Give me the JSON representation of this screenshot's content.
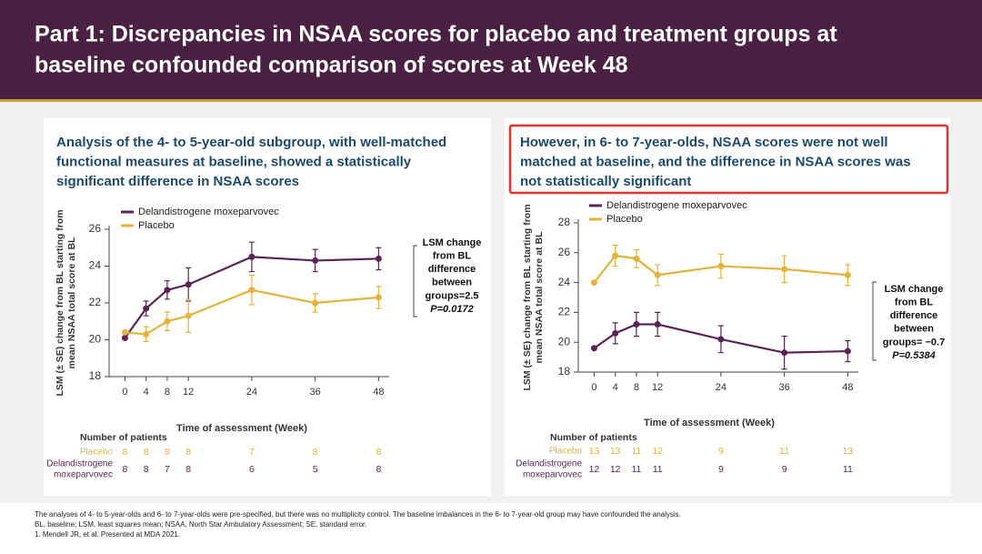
{
  "header": {
    "title": [
      "Part 1: Discrepancies in NSAA scores for placebo and treatment groups at",
      "baseline confounded comparison of scores at Week 48"
    ]
  },
  "chart_data": [
    {
      "type": "line",
      "heading": [
        "Analysis of the 4- to 5-year-old subgroup, with well-matched",
        "functional measures at baseline, showed a statistically",
        "significant difference in NSAA scores"
      ],
      "ylabel": [
        "LSM (± SE) change from BL starting from",
        "mean NSAA total score at BL"
      ],
      "xlabel": "Time of assessment (Week)",
      "x": [
        0,
        4,
        8,
        12,
        24,
        36,
        48
      ],
      "xlim": [
        -3,
        50
      ],
      "xticks": [
        0,
        4,
        8,
        12,
        24,
        36,
        48
      ],
      "ylim": [
        18,
        26
      ],
      "yticks": [
        18,
        20,
        22,
        24,
        26
      ],
      "series": [
        {
          "name": "Delandistrogene moxeparvovec",
          "color": "#5b2456",
          "values": [
            20.1,
            21.7,
            22.7,
            23.0,
            24.5,
            24.3,
            24.4
          ],
          "errors": [
            null,
            0.4,
            0.5,
            0.9,
            0.8,
            0.6,
            0.6
          ]
        },
        {
          "name": "Placebo",
          "color": "#e3b33b",
          "values": [
            20.4,
            20.3,
            21.0,
            21.3,
            22.7,
            22.0,
            22.3
          ],
          "errors": [
            null,
            0.4,
            0.5,
            0.9,
            0.8,
            0.5,
            0.6
          ]
        }
      ],
      "annotation": [
        "LSM change",
        "from BL",
        "difference",
        "between",
        "groups=2.5",
        "P=0.0172"
      ],
      "patient_table": {
        "title": "Number of patients",
        "rows": [
          {
            "name": [
              "Placebo"
            ],
            "color": "#e3b33b",
            "values": [
              "8",
              "8",
              "8",
              "8",
              "7",
              "8",
              "8"
            ]
          },
          {
            "name": [
              "Delandistrogene",
              "moxeparvovec"
            ],
            "color": "#5b2456",
            "values": [
              "8",
              "8",
              "7",
              "8",
              "6",
              "5",
              "8"
            ]
          }
        ]
      }
    },
    {
      "type": "line",
      "heading": [
        "However, in 6- to 7-year-olds, NSAA scores were not well",
        "matched at baseline, and the difference in NSAA scores was",
        "not statistically significant"
      ],
      "ylabel": [
        "LSM (± SE) change from BL starting from",
        "mean NSAA total score at BL"
      ],
      "xlabel": "Time of assessment (Week)",
      "x": [
        0,
        4,
        8,
        12,
        24,
        36,
        48
      ],
      "xlim": [
        -3,
        50
      ],
      "xticks": [
        0,
        4,
        8,
        12,
        24,
        36,
        48
      ],
      "ylim": [
        18,
        28
      ],
      "yticks": [
        18,
        20,
        22,
        24,
        26,
        28
      ],
      "series": [
        {
          "name": "Delandistrogene moxeparvovec",
          "color": "#5b2456",
          "values": [
            19.6,
            20.6,
            21.2,
            21.2,
            20.2,
            19.3,
            19.4
          ],
          "errors": [
            null,
            0.7,
            0.8,
            0.8,
            0.9,
            1.1,
            0.7
          ]
        },
        {
          "name": "Placebo",
          "color": "#e3b33b",
          "values": [
            24.0,
            25.8,
            25.6,
            24.5,
            25.1,
            24.9,
            24.5
          ],
          "errors": [
            null,
            0.7,
            0.6,
            0.7,
            0.8,
            0.9,
            0.7
          ]
        }
      ],
      "annotation": [
        "LSM change",
        "from BL",
        "difference",
        "between",
        "groups= −0.7",
        "P=0.5384"
      ],
      "patient_table": {
        "title": "Number of patients",
        "rows": [
          {
            "name": [
              "Placebo"
            ],
            "color": "#e3b33b",
            "values": [
              "13",
              "13",
              "11",
              "12",
              "9",
              "11",
              "13"
            ]
          },
          {
            "name": [
              "Delandistrogene",
              "moxeparvovec"
            ],
            "color": "#5b2456",
            "values": [
              "12",
              "12",
              "11",
              "11",
              "9",
              "9",
              "11"
            ]
          }
        ]
      }
    }
  ],
  "footnotes": [
    "The analyses of 4- to 5-year-olds and 6- to 7-year-olds were pre-specified, but there was no multiplicity control. The baseline imbalances in the 6- to 7-year-old group may have confounded the analysis.",
    "BL, baseline; LSM, least squares mean; NSAA, North Star Ambulatory Assessment; SE, standard error.",
    "1. Mendell JR, et al. Presented at MDA 2021."
  ]
}
